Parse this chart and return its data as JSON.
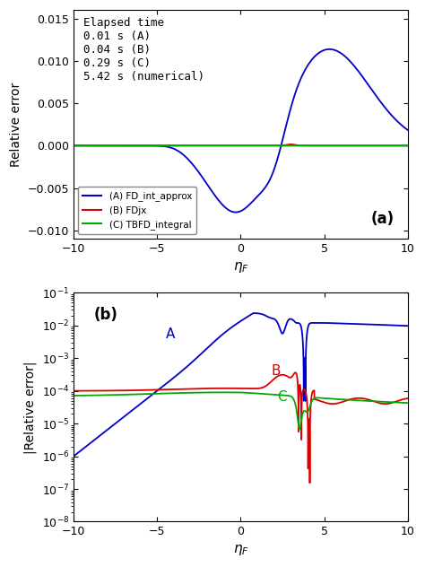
{
  "title_a": "(a)",
  "title_b": "(b)",
  "xlabel": "$\\eta_F$",
  "ylabel_a": "Relative error",
  "ylabel_b": "|Relative error|",
  "xlim": [
    -10,
    10
  ],
  "colors": {
    "A": "#0000CC",
    "B": "#DD0000",
    "C": "#00AA00"
  },
  "legend_labels": [
    "(A) FD_int_approx",
    "(B) FDjx",
    "(C) TBFD_integral"
  ],
  "annotation_text": "Elapsed time\n0.01 s (A)\n0.04 s (B)\n0.29 s (C)\n5.42 s (numerical)",
  "figsize": [
    4.74,
    6.32
  ],
  "dpi": 100
}
